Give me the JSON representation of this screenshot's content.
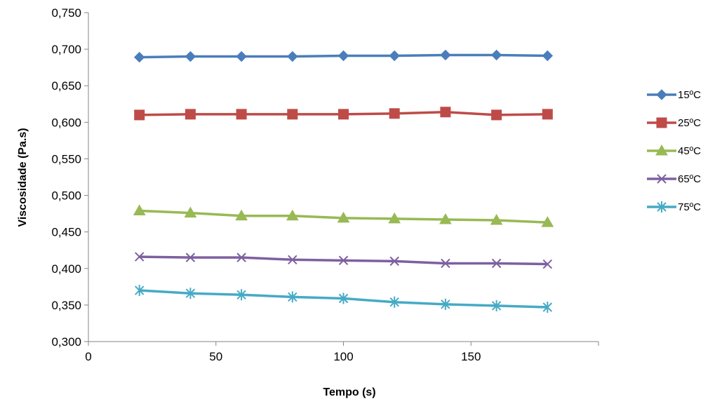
{
  "chart_data": {
    "type": "line",
    "xlabel": "Tempo (s)",
    "ylabel": "Viscosidade (Pa.s)",
    "xlim": [
      0,
      200
    ],
    "ylim": [
      0.3,
      0.75
    ],
    "x_ticks": [
      0,
      50,
      100,
      150
    ],
    "x_tick_labels": [
      "0",
      "50",
      "100",
      "150"
    ],
    "y_ticks": [
      0.3,
      0.35,
      0.4,
      0.45,
      0.5,
      0.55,
      0.6,
      0.65,
      0.7,
      0.75
    ],
    "y_tick_labels": [
      "0,300",
      "0,350",
      "0,400",
      "0,450",
      "0,500",
      "0,550",
      "0,600",
      "0,650",
      "0,700",
      "0,750"
    ],
    "grid": false,
    "legend_position": "right",
    "x": [
      20,
      40,
      60,
      80,
      100,
      120,
      140,
      160,
      180
    ],
    "series": [
      {
        "name": "15ºC",
        "color": "#4a7ebb",
        "marker": "diamond",
        "values": [
          0.689,
          0.69,
          0.69,
          0.69,
          0.691,
          0.691,
          0.692,
          0.692,
          0.691
        ]
      },
      {
        "name": "25ºC",
        "color": "#be4b48",
        "marker": "square",
        "values": [
          0.61,
          0.611,
          0.611,
          0.611,
          0.611,
          0.612,
          0.614,
          0.61,
          0.611
        ]
      },
      {
        "name": "45ºC",
        "color": "#98b954",
        "marker": "triangle",
        "values": [
          0.479,
          0.476,
          0.472,
          0.472,
          0.469,
          0.468,
          0.467,
          0.466,
          0.463
        ]
      },
      {
        "name": "65ºC",
        "color": "#7d60a0",
        "marker": "x",
        "values": [
          0.416,
          0.415,
          0.415,
          0.412,
          0.411,
          0.41,
          0.407,
          0.407,
          0.406
        ]
      },
      {
        "name": "75ºC",
        "color": "#46aac5",
        "marker": "star",
        "values": [
          0.37,
          0.366,
          0.364,
          0.361,
          0.359,
          0.354,
          0.351,
          0.349,
          0.347
        ]
      }
    ]
  }
}
